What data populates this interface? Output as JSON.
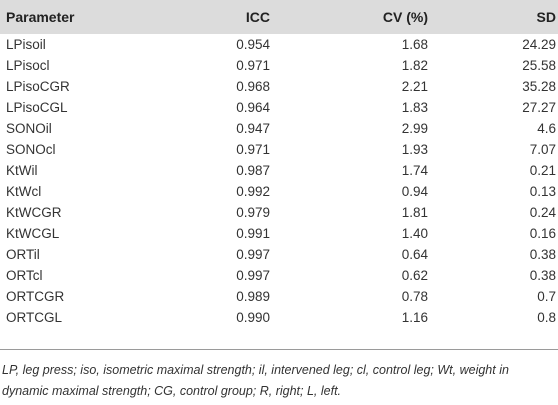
{
  "table": {
    "headers": {
      "parameter": "Parameter",
      "icc": "ICC",
      "cv": "CV (%)",
      "sd": "SD"
    },
    "rows": [
      {
        "parameter": "LPisoil",
        "icc": "0.954",
        "cv": "1.68",
        "sd": "24.29"
      },
      {
        "parameter": "LPisocl",
        "icc": "0.971",
        "cv": "1.82",
        "sd": "25.58"
      },
      {
        "parameter": "LPisoCGR",
        "icc": "0.968",
        "cv": "2.21",
        "sd": "35.28"
      },
      {
        "parameter": "LPisoCGL",
        "icc": "0.964",
        "cv": "1.83",
        "sd": "27.27"
      },
      {
        "parameter": "SONOil",
        "icc": "0.947",
        "cv": "2.99",
        "sd": "4.6"
      },
      {
        "parameter": "SONOcl",
        "icc": "0.971",
        "cv": "1.93",
        "sd": "7.07"
      },
      {
        "parameter": "KtWil",
        "icc": "0.987",
        "cv": "1.74",
        "sd": "0.21"
      },
      {
        "parameter": "KtWcl",
        "icc": "0.992",
        "cv": "0.94",
        "sd": "0.13"
      },
      {
        "parameter": "KtWCGR",
        "icc": "0.979",
        "cv": "1.81",
        "sd": "0.24"
      },
      {
        "parameter": "KtWCGL",
        "icc": "0.991",
        "cv": "1.40",
        "sd": "0.16"
      },
      {
        "parameter": "ORTil",
        "icc": "0.997",
        "cv": "0.64",
        "sd": "0.38"
      },
      {
        "parameter": "ORTcl",
        "icc": "0.997",
        "cv": "0.62",
        "sd": "0.38"
      },
      {
        "parameter": "ORTCGR",
        "icc": "0.989",
        "cv": "0.78",
        "sd": "0.7"
      },
      {
        "parameter": "ORTCGL",
        "icc": "0.990",
        "cv": "1.16",
        "sd": "0.8"
      }
    ]
  },
  "footnote": "LP, leg press; iso, isometric maximal strength; il, intervened leg; cl, control leg; Wt, weight in dynamic maximal strength; CG, control group; R, right; L, left.",
  "colors": {
    "header_bg": "#dcdcdc",
    "rule": "#9a9a9a",
    "text": "#333333"
  }
}
